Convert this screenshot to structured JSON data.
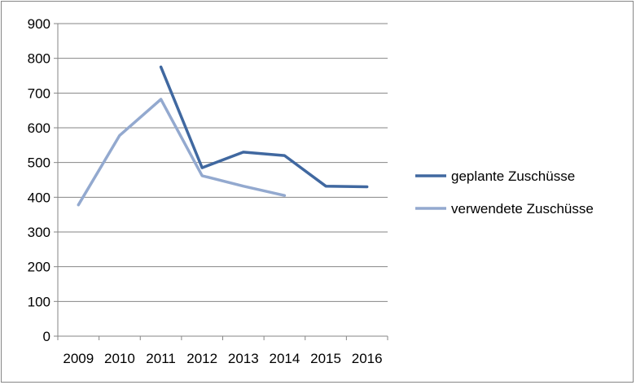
{
  "chart_data": {
    "type": "line",
    "title": "",
    "xlabel": "",
    "ylabel": "",
    "categories": [
      "2009",
      "2010",
      "2011",
      "2012",
      "2013",
      "2014",
      "2015",
      "2016"
    ],
    "ylim": [
      0,
      900
    ],
    "yticks": [
      "0",
      "100",
      "200",
      "300",
      "400",
      "500",
      "600",
      "700",
      "800",
      "900"
    ],
    "grid": true,
    "legend_position": "right",
    "series": [
      {
        "name": "geplante Zuschüsse",
        "color": "#4068a0",
        "values": [
          null,
          null,
          775,
          485,
          530,
          520,
          432,
          430
        ]
      },
      {
        "name": "verwendete Zuschüsse",
        "color": "#93a9cf",
        "values": [
          378,
          578,
          682,
          462,
          432,
          405,
          null,
          null
        ]
      }
    ]
  }
}
